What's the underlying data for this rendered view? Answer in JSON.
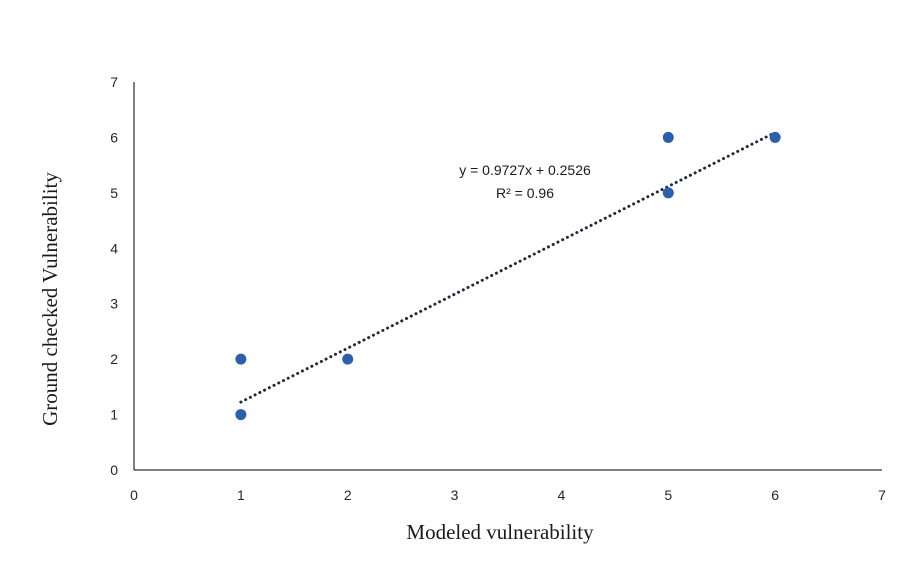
{
  "chart_data": {
    "type": "scatter",
    "title": "",
    "xlabel": "Modeled vulnerability",
    "ylabel": "Ground checked Vulnerability",
    "xlim": [
      0,
      7
    ],
    "ylim": [
      0,
      7
    ],
    "x_ticks": [
      "0",
      "1",
      "2",
      "3",
      "4",
      "5",
      "6",
      "7"
    ],
    "y_ticks": [
      "0",
      "1",
      "2",
      "3",
      "4",
      "5",
      "6",
      "7"
    ],
    "grid": false,
    "legend": "none",
    "series": [
      {
        "points": [
          {
            "x": 1,
            "y": 1
          },
          {
            "x": 1,
            "y": 2
          },
          {
            "x": 2,
            "y": 2
          },
          {
            "x": 5,
            "y": 5
          },
          {
            "x": 5,
            "y": 6
          },
          {
            "x": 6,
            "y": 6
          }
        ],
        "color": "#2e5fac"
      }
    ],
    "trendline": {
      "type": "linear",
      "slope": 0.9727,
      "intercept": 0.2526,
      "x_range": [
        1,
        6
      ],
      "style": "dotted",
      "color": "#1f2a3c",
      "equation_label": "y = 0.9727x + 0.2526",
      "r2_label": "R² = 0.96"
    }
  }
}
